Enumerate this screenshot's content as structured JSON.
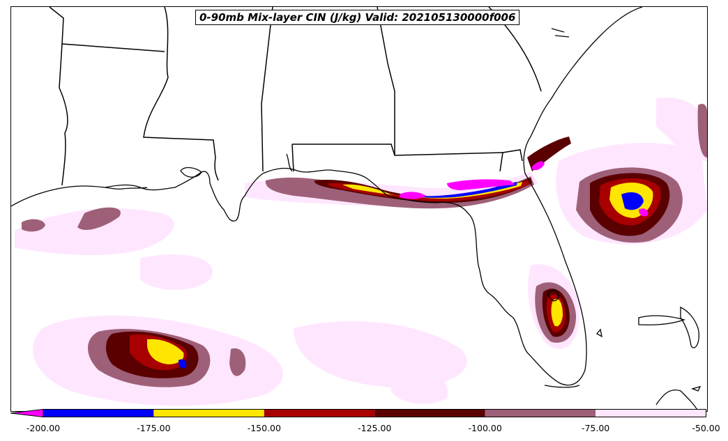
{
  "title": "0-90mb Mix-layer CIN (J/kg) Valid: 202105130000f006",
  "colorbar": {
    "extend": "min",
    "levels": [
      {
        "range": "< -200",
        "color": "#ff00ff"
      },
      {
        "range": "-200 to -175",
        "color": "#0000ff"
      },
      {
        "range": "-175 to -150",
        "color": "#ffe600"
      },
      {
        "range": "-150 to -125",
        "color": "#a80000"
      },
      {
        "range": "-125 to -100",
        "color": "#5a0000"
      },
      {
        "range": "-100 to -75",
        "color": "#9e6078"
      },
      {
        "range": "-75 to -50",
        "color": "#ffe6ff"
      }
    ],
    "ticks": [
      "-200.00",
      "-175.00",
      "-150.00",
      "-125.00",
      "-100.00",
      "-75.00",
      "-50.00"
    ]
  },
  "map": {
    "region": "U.S. Gulf Coast, Florida and Gulf of Mexico",
    "features": [
      "coastlines",
      "state borders"
    ]
  }
}
